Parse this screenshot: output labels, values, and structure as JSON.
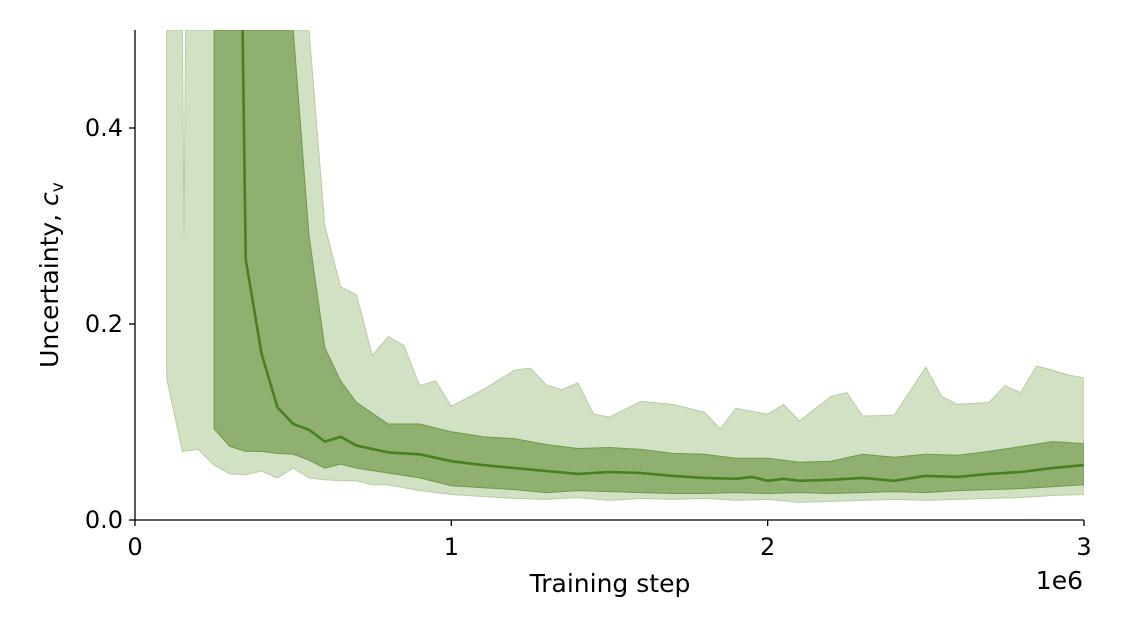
{
  "chart_data": {
    "type": "area",
    "title": "",
    "xlabel": "Training step",
    "ylabel": "Uncertainty, ",
    "ylabel_math": "c",
    "ylabel_sub": "v",
    "x_offset_text": "1e6",
    "xlim": [
      0,
      3000000
    ],
    "ylim": [
      0,
      0.5
    ],
    "x_ticks": [
      0,
      1000000,
      2000000,
      3000000
    ],
    "x_tick_labels": [
      "0",
      "1",
      "2",
      "3"
    ],
    "y_ticks": [
      0.0,
      0.2,
      0.4
    ],
    "y_tick_labels": [
      "0.0",
      "0.2",
      "0.4"
    ],
    "grid": false,
    "legend": "none",
    "colors": {
      "median_line": "#4a7f22",
      "inner_band": "#8fb070",
      "inner_band_edge": "#6f9a4a",
      "outer_band": "#d2e0c4",
      "outer_band_edge": "#b7cda3"
    },
    "outer_band": {
      "upper": [
        [
          100000,
          0.5
        ],
        [
          150000,
          0.5
        ],
        [
          155000,
          0.29
        ],
        [
          160000,
          0.5
        ],
        [
          200000,
          0.5
        ],
        [
          300000,
          0.5
        ],
        [
          500000,
          0.5
        ],
        [
          550000,
          0.5
        ],
        [
          600000,
          0.3
        ],
        [
          650000,
          0.238
        ],
        [
          700000,
          0.23
        ],
        [
          750000,
          0.168
        ],
        [
          800000,
          0.187
        ],
        [
          850000,
          0.178
        ],
        [
          900000,
          0.137
        ],
        [
          950000,
          0.142
        ],
        [
          1000000,
          0.116
        ],
        [
          1100000,
          0.133
        ],
        [
          1200000,
          0.153
        ],
        [
          1250000,
          0.155
        ],
        [
          1300000,
          0.138
        ],
        [
          1350000,
          0.133
        ],
        [
          1400000,
          0.14
        ],
        [
          1450000,
          0.108
        ],
        [
          1500000,
          0.105
        ],
        [
          1600000,
          0.121
        ],
        [
          1700000,
          0.118
        ],
        [
          1800000,
          0.11
        ],
        [
          1850000,
          0.093
        ],
        [
          1900000,
          0.114
        ],
        [
          2000000,
          0.108
        ],
        [
          2050000,
          0.118
        ],
        [
          2100000,
          0.101
        ],
        [
          2200000,
          0.126
        ],
        [
          2250000,
          0.13
        ],
        [
          2300000,
          0.106
        ],
        [
          2400000,
          0.107
        ],
        [
          2500000,
          0.156
        ],
        [
          2550000,
          0.126
        ],
        [
          2600000,
          0.118
        ],
        [
          2700000,
          0.12
        ],
        [
          2750000,
          0.137
        ],
        [
          2800000,
          0.13
        ],
        [
          2850000,
          0.157
        ],
        [
          2900000,
          0.153
        ],
        [
          2950000,
          0.148
        ],
        [
          3000000,
          0.145
        ]
      ],
      "lower": [
        [
          100000,
          0.145
        ],
        [
          150000,
          0.07
        ],
        [
          200000,
          0.072
        ],
        [
          250000,
          0.056
        ],
        [
          300000,
          0.047
        ],
        [
          350000,
          0.046
        ],
        [
          400000,
          0.05
        ],
        [
          450000,
          0.043
        ],
        [
          500000,
          0.053
        ],
        [
          550000,
          0.043
        ],
        [
          600000,
          0.041
        ],
        [
          650000,
          0.04
        ],
        [
          700000,
          0.04
        ],
        [
          750000,
          0.036
        ],
        [
          800000,
          0.036
        ],
        [
          900000,
          0.03
        ],
        [
          1000000,
          0.026
        ],
        [
          1100000,
          0.024
        ],
        [
          1200000,
          0.022
        ],
        [
          1300000,
          0.021
        ],
        [
          1400000,
          0.023
        ],
        [
          1500000,
          0.02
        ],
        [
          1600000,
          0.022
        ],
        [
          1700000,
          0.021
        ],
        [
          1800000,
          0.022
        ],
        [
          1900000,
          0.02
        ],
        [
          2000000,
          0.021
        ],
        [
          2100000,
          0.018
        ],
        [
          2200000,
          0.019
        ],
        [
          2300000,
          0.02
        ],
        [
          2400000,
          0.021
        ],
        [
          2500000,
          0.02
        ],
        [
          2600000,
          0.021
        ],
        [
          2700000,
          0.022
        ],
        [
          2800000,
          0.023
        ],
        [
          2900000,
          0.025
        ],
        [
          3000000,
          0.026
        ]
      ]
    },
    "inner_band": {
      "upper": [
        [
          250000,
          0.5
        ],
        [
          500000,
          0.5
        ],
        [
          550000,
          0.29
        ],
        [
          600000,
          0.176
        ],
        [
          650000,
          0.142
        ],
        [
          700000,
          0.12
        ],
        [
          800000,
          0.098
        ],
        [
          900000,
          0.098
        ],
        [
          1000000,
          0.09
        ],
        [
          1100000,
          0.085
        ],
        [
          1200000,
          0.083
        ],
        [
          1300000,
          0.077
        ],
        [
          1400000,
          0.073
        ],
        [
          1500000,
          0.074
        ],
        [
          1600000,
          0.072
        ],
        [
          1700000,
          0.068
        ],
        [
          1800000,
          0.067
        ],
        [
          1900000,
          0.063
        ],
        [
          2000000,
          0.063
        ],
        [
          2100000,
          0.059
        ],
        [
          2200000,
          0.06
        ],
        [
          2300000,
          0.067
        ],
        [
          2400000,
          0.064
        ],
        [
          2500000,
          0.067
        ],
        [
          2600000,
          0.066
        ],
        [
          2700000,
          0.07
        ],
        [
          2800000,
          0.075
        ],
        [
          2900000,
          0.08
        ],
        [
          3000000,
          0.078
        ]
      ],
      "lower": [
        [
          250000,
          0.093
        ],
        [
          300000,
          0.075
        ],
        [
          350000,
          0.07
        ],
        [
          400000,
          0.07
        ],
        [
          450000,
          0.068
        ],
        [
          500000,
          0.067
        ],
        [
          550000,
          0.061
        ],
        [
          600000,
          0.053
        ],
        [
          650000,
          0.057
        ],
        [
          700000,
          0.053
        ],
        [
          800000,
          0.048
        ],
        [
          900000,
          0.043
        ],
        [
          1000000,
          0.035
        ],
        [
          1100000,
          0.033
        ],
        [
          1200000,
          0.031
        ],
        [
          1300000,
          0.028
        ],
        [
          1400000,
          0.03
        ],
        [
          1500000,
          0.029
        ],
        [
          1600000,
          0.028
        ],
        [
          1700000,
          0.027
        ],
        [
          1800000,
          0.027
        ],
        [
          1900000,
          0.028
        ],
        [
          2000000,
          0.027
        ],
        [
          2100000,
          0.028
        ],
        [
          2200000,
          0.027
        ],
        [
          2300000,
          0.028
        ],
        [
          2400000,
          0.029
        ],
        [
          2500000,
          0.028
        ],
        [
          2600000,
          0.03
        ],
        [
          2700000,
          0.031
        ],
        [
          2800000,
          0.032
        ],
        [
          2900000,
          0.034
        ],
        [
          3000000,
          0.036
        ]
      ]
    },
    "median": [
      [
        340000,
        0.5
      ],
      [
        350000,
        0.266
      ],
      [
        400000,
        0.17
      ],
      [
        450000,
        0.115
      ],
      [
        500000,
        0.098
      ],
      [
        550000,
        0.092
      ],
      [
        600000,
        0.08
      ],
      [
        650000,
        0.085
      ],
      [
        700000,
        0.076
      ],
      [
        800000,
        0.069
      ],
      [
        900000,
        0.067
      ],
      [
        1000000,
        0.06
      ],
      [
        1100000,
        0.056
      ],
      [
        1200000,
        0.053
      ],
      [
        1300000,
        0.05
      ],
      [
        1400000,
        0.047
      ],
      [
        1500000,
        0.049
      ],
      [
        1600000,
        0.048
      ],
      [
        1700000,
        0.045
      ],
      [
        1800000,
        0.043
      ],
      [
        1900000,
        0.042
      ],
      [
        1950000,
        0.044
      ],
      [
        2000000,
        0.04
      ],
      [
        2050000,
        0.042
      ],
      [
        2100000,
        0.04
      ],
      [
        2200000,
        0.041
      ],
      [
        2300000,
        0.043
      ],
      [
        2400000,
        0.04
      ],
      [
        2500000,
        0.045
      ],
      [
        2600000,
        0.044
      ],
      [
        2700000,
        0.047
      ],
      [
        2800000,
        0.049
      ],
      [
        2900000,
        0.053
      ],
      [
        3000000,
        0.056
      ]
    ]
  }
}
